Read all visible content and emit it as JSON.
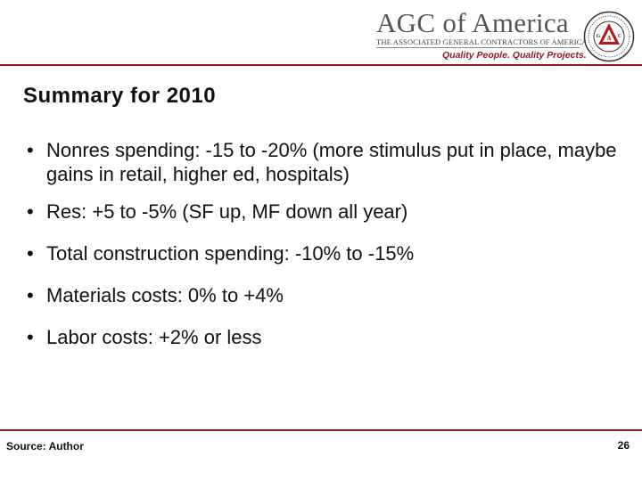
{
  "header": {
    "logo_title": "AGC of America",
    "logo_subtitle": "THE ASSOCIATED GENERAL CONTRACTORS OF AMERICA",
    "logo_tagline": "Quality People. Quality Projects.",
    "seal_letters": [
      "A",
      "G",
      "C"
    ],
    "seal_icon": "agc-seal-icon",
    "accent_color": "#8b1a1a"
  },
  "slide": {
    "title": "Summary for 2010",
    "bullet_glyph": "•",
    "bullets": [
      "Nonres spending: -15 to -20% (more stimulus put in place, maybe gains in retail, higher ed, hospitals)",
      "Res: +5 to -5% (SF up, MF down all year)",
      "Total construction spending: -10% to -15%",
      "Materials costs: 0% to +4%",
      "Labor costs: +2% or less"
    ]
  },
  "footer": {
    "source": "Source: Author",
    "page_number": "26"
  }
}
